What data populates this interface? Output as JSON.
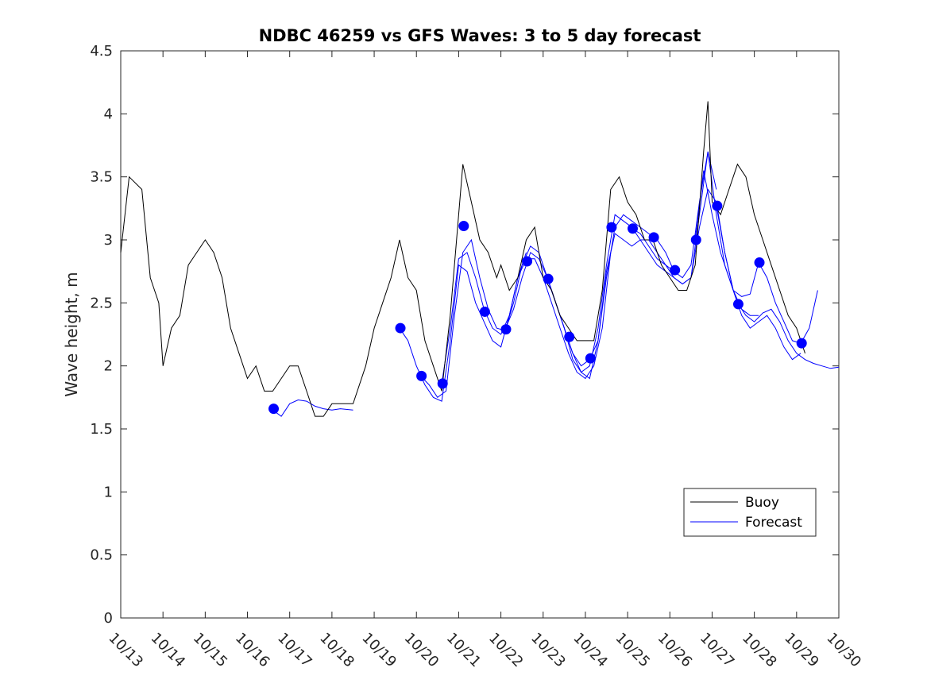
{
  "chart_data": {
    "type": "line",
    "title": "NDBC 46259 vs GFS Waves: 3 to 5 day forecast",
    "xlabel": "",
    "ylabel": "Wave height, m",
    "xlim": [
      13,
      30
    ],
    "ylim": [
      0,
      4.5
    ],
    "yticks": [
      0,
      0.5,
      1,
      1.5,
      2,
      2.5,
      3,
      3.5,
      4,
      4.5
    ],
    "ytick_labels": [
      "0",
      "0.5",
      "1",
      "1.5",
      "2",
      "2.5",
      "3",
      "3.5",
      "4",
      "4.5"
    ],
    "xticks": [
      13,
      14,
      15,
      16,
      17,
      18,
      19,
      20,
      21,
      22,
      23,
      24,
      25,
      26,
      27,
      28,
      29,
      30
    ],
    "xtick_labels": [
      "10/13",
      "10/14",
      "10/15",
      "10/16",
      "10/17",
      "10/18",
      "10/19",
      "10/20",
      "10/21",
      "10/22",
      "10/23",
      "10/24",
      "10/25",
      "10/26",
      "10/27",
      "10/28",
      "10/29",
      "10/30"
    ],
    "legend": {
      "position": "lower-right",
      "entries": [
        "Buoy",
        "Forecast"
      ]
    },
    "colors": {
      "buoy": "#000000",
      "forecast": "#0000ff",
      "markers": "#0000ff"
    },
    "buoy": {
      "name": "Buoy",
      "x": [
        13.0,
        13.2,
        13.5,
        13.7,
        13.9,
        14.0,
        14.2,
        14.4,
        14.6,
        14.8,
        15.0,
        15.2,
        15.4,
        15.6,
        15.8,
        16.0,
        16.2,
        16.4,
        16.6,
        16.8,
        17.0,
        17.2,
        17.4,
        17.6,
        17.8,
        18.0,
        18.2,
        18.5,
        18.8,
        19.0,
        19.2,
        19.4,
        19.6,
        19.8,
        20.0,
        20.2,
        20.4,
        20.6,
        20.8,
        21.0,
        21.1,
        21.3,
        21.5,
        21.7,
        21.9,
        22.0,
        22.2,
        22.4,
        22.6,
        22.8,
        23.0,
        23.2,
        23.4,
        23.6,
        23.8,
        24.0,
        24.2,
        24.4,
        24.6,
        24.8,
        25.0,
        25.2,
        25.4,
        25.6,
        25.8,
        26.0,
        26.2,
        26.4,
        26.6,
        26.8,
        26.9,
        27.0,
        27.2,
        27.4,
        27.6,
        27.8,
        28.0,
        28.2,
        28.4,
        28.6,
        28.8,
        29.0,
        29.2
      ],
      "values": [
        2.9,
        3.5,
        3.4,
        2.7,
        2.5,
        2.0,
        2.3,
        2.4,
        2.8,
        2.9,
        3.0,
        2.9,
        2.7,
        2.3,
        2.1,
        1.9,
        2.0,
        1.8,
        1.8,
        1.9,
        2.0,
        2.0,
        1.8,
        1.6,
        1.6,
        1.7,
        1.7,
        1.7,
        2.0,
        2.3,
        2.5,
        2.7,
        3.0,
        2.7,
        2.6,
        2.2,
        2.0,
        1.8,
        2.4,
        3.2,
        3.6,
        3.3,
        3.0,
        2.9,
        2.7,
        2.8,
        2.6,
        2.7,
        3.0,
        3.1,
        2.7,
        2.6,
        2.4,
        2.3,
        2.2,
        2.2,
        2.2,
        2.6,
        3.4,
        3.5,
        3.3,
        3.2,
        3.0,
        3.0,
        2.8,
        2.7,
        2.6,
        2.6,
        2.8,
        3.7,
        4.1,
        3.3,
        3.2,
        3.4,
        3.6,
        3.5,
        3.2,
        3.0,
        2.8,
        2.6,
        2.4,
        2.3,
        2.1
      ]
    },
    "forecast_series": [
      {
        "name": "Forecast",
        "x": [
          16.6,
          16.8,
          17.0,
          17.2,
          17.4,
          17.6,
          17.8,
          18.0,
          18.2,
          18.5
        ],
        "values": [
          1.65,
          1.6,
          1.7,
          1.73,
          1.72,
          1.68,
          1.66,
          1.65,
          1.66,
          1.65
        ]
      },
      {
        "name": "Forecast",
        "x": [
          19.6,
          19.8,
          20.0,
          20.2,
          20.4,
          20.6,
          20.8,
          21.0,
          21.2,
          21.4,
          21.6,
          21.8,
          22.0,
          22.2,
          22.4,
          22.6
        ],
        "values": [
          2.3,
          2.2,
          2.0,
          1.85,
          1.75,
          1.72,
          2.2,
          2.8,
          2.75,
          2.5,
          2.35,
          2.2,
          2.15,
          2.4,
          2.7,
          2.9
        ]
      },
      {
        "name": "Forecast",
        "x": [
          20.1,
          20.3,
          20.5,
          20.7,
          20.9,
          21.1,
          21.3,
          21.5,
          21.7,
          21.9,
          22.1,
          22.3,
          22.5,
          22.7,
          22.9,
          23.1,
          23.3,
          23.5,
          23.7,
          23.9,
          24.1
        ],
        "values": [
          1.92,
          1.85,
          1.75,
          1.8,
          2.4,
          2.9,
          3.0,
          2.7,
          2.45,
          2.3,
          2.28,
          2.5,
          2.8,
          2.95,
          2.9,
          2.7,
          2.5,
          2.3,
          2.1,
          2.0,
          2.05
        ]
      },
      {
        "name": "Forecast",
        "x": [
          20.6,
          20.8,
          21.0,
          21.2,
          21.4,
          21.6,
          21.8,
          22.0,
          22.2,
          22.4,
          22.6,
          22.8,
          23.0,
          23.2,
          23.4,
          23.6,
          23.8,
          24.0,
          24.2,
          24.4,
          24.6
        ],
        "values": [
          1.86,
          2.3,
          2.85,
          2.9,
          2.7,
          2.45,
          2.3,
          2.25,
          2.4,
          2.7,
          2.85,
          2.85,
          2.7,
          2.5,
          2.3,
          2.1,
          1.95,
          1.9,
          2.0,
          2.3,
          2.9
        ]
      },
      {
        "name": "Forecast",
        "x": [
          22.1,
          22.3,
          22.5,
          22.7,
          22.9,
          23.1,
          23.3,
          23.5,
          23.7,
          23.9,
          24.1,
          24.3,
          24.5,
          24.7,
          24.9,
          25.1,
          25.3,
          25.5,
          25.7,
          25.9,
          26.1
        ],
        "values": [
          2.29,
          2.45,
          2.7,
          2.9,
          2.85,
          2.7,
          2.5,
          2.3,
          2.05,
          1.95,
          1.9,
          2.2,
          2.7,
          3.1,
          3.2,
          3.15,
          3.1,
          3.05,
          3.0,
          2.9,
          2.75
        ]
      },
      {
        "name": "Forecast",
        "x": [
          23.1,
          23.3,
          23.5,
          23.7,
          23.9,
          24.1,
          24.3,
          24.5,
          24.7,
          24.9,
          25.1,
          25.3,
          25.5,
          25.7,
          25.9,
          26.1,
          26.3,
          26.5,
          26.7,
          26.9,
          27.1
        ],
        "values": [
          2.69,
          2.5,
          2.3,
          2.1,
          1.95,
          2.0,
          2.3,
          2.8,
          3.2,
          3.15,
          3.1,
          3.0,
          2.9,
          2.8,
          2.75,
          2.7,
          2.65,
          2.7,
          3.2,
          3.7,
          3.4
        ]
      },
      {
        "name": "Forecast",
        "x": [
          24.1,
          24.3,
          24.5,
          24.7,
          24.9,
          25.1,
          25.3,
          25.5,
          25.7,
          25.9,
          26.1,
          26.3,
          26.5,
          26.7,
          26.9,
          27.1,
          27.3,
          27.5,
          27.7,
          27.9,
          28.1
        ],
        "values": [
          2.05,
          2.2,
          2.75,
          3.05,
          3.0,
          2.95,
          3.0,
          3.0,
          2.9,
          2.8,
          2.7,
          2.65,
          2.7,
          3.1,
          3.4,
          3.3,
          2.9,
          2.6,
          2.45,
          2.4,
          2.4
        ]
      },
      {
        "name": "Forecast",
        "x": [
          25.1,
          25.3,
          25.5,
          25.7,
          25.9,
          26.1,
          26.3,
          26.5,
          26.7,
          26.9,
          27.1,
          27.3,
          27.5,
          27.7,
          27.9,
          28.1,
          28.3,
          28.5,
          28.7,
          28.9,
          29.1
        ],
        "values": [
          3.09,
          3.05,
          2.95,
          2.85,
          2.8,
          2.75,
          2.7,
          2.8,
          3.3,
          3.7,
          3.2,
          2.8,
          2.6,
          2.4,
          2.3,
          2.35,
          2.4,
          2.3,
          2.15,
          2.05,
          2.1
        ]
      },
      {
        "name": "Forecast",
        "x": [
          26.6,
          26.8,
          27.0,
          27.2,
          27.4,
          27.6,
          27.8,
          28.0,
          28.2,
          28.4,
          28.6,
          28.8,
          29.0,
          29.2,
          29.4,
          29.6,
          29.8,
          30.0
        ],
        "values": [
          3.0,
          3.55,
          3.2,
          2.9,
          2.7,
          2.5,
          2.4,
          2.35,
          2.42,
          2.45,
          2.35,
          2.2,
          2.1,
          2.05,
          2.02,
          2.0,
          1.98,
          1.99
        ]
      },
      {
        "name": "Forecast",
        "x": [
          27.1,
          27.3,
          27.5,
          27.7,
          27.9,
          28.1,
          28.3,
          28.5,
          28.7,
          28.9,
          29.1,
          29.3,
          29.5
        ],
        "values": [
          3.27,
          2.9,
          2.6,
          2.55,
          2.57,
          2.82,
          2.7,
          2.5,
          2.35,
          2.2,
          2.18,
          2.3,
          2.6
        ]
      }
    ],
    "forecast_markers": {
      "x": [
        16.62,
        19.62,
        20.12,
        20.62,
        21.12,
        21.62,
        22.12,
        22.62,
        23.12,
        23.62,
        24.12,
        24.62,
        25.12,
        25.62,
        26.12,
        26.62,
        27.12,
        27.62,
        28.12,
        29.12
      ],
      "values": [
        1.66,
        2.3,
        1.92,
        1.86,
        3.11,
        2.43,
        2.29,
        2.83,
        2.69,
        2.23,
        2.06,
        3.1,
        3.09,
        3.02,
        2.76,
        3.0,
        3.27,
        2.49,
        2.82,
        2.18
      ]
    }
  }
}
